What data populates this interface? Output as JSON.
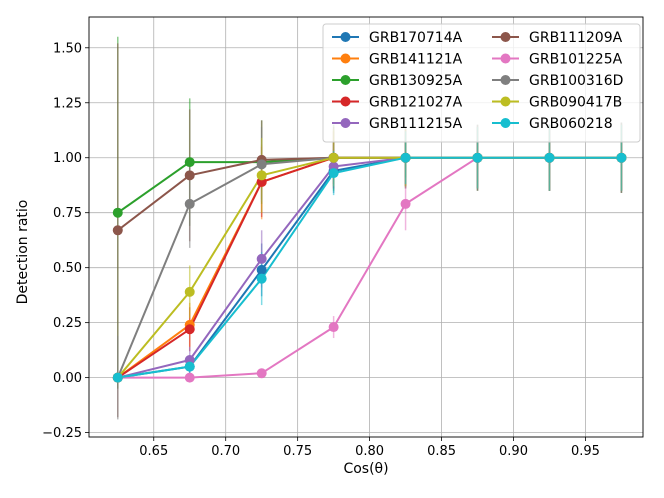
{
  "chart_data": {
    "type": "line",
    "title": "",
    "xlabel": "Cos(θ)",
    "ylabel": "Detection ratio",
    "xlim": [
      0.605,
      0.99
    ],
    "ylim": [
      -0.27,
      1.64
    ],
    "xticks": [
      0.65,
      0.7,
      0.75,
      0.8,
      0.85,
      0.9,
      0.95
    ],
    "xtick_labels": [
      "0.65",
      "0.70",
      "0.75",
      "0.80",
      "0.85",
      "0.90",
      "0.95"
    ],
    "yticks": [
      -0.25,
      0.0,
      0.25,
      0.5,
      0.75,
      1.0,
      1.25,
      1.5
    ],
    "ytick_labels": [
      "−0.25",
      "0.00",
      "0.25",
      "0.50",
      "0.75",
      "1.00",
      "1.25",
      "1.50"
    ],
    "grid": true,
    "legend_position": "top-right",
    "legend_columns": 2,
    "x": [
      0.625,
      0.675,
      0.725,
      0.775,
      0.825,
      0.875,
      0.925,
      0.975
    ],
    "series": [
      {
        "name": "GRB170714A",
        "color": "#1f77b4",
        "values": [
          0.0,
          0.05,
          0.49,
          0.94,
          1.0,
          1.0,
          1.0,
          1.0
        ],
        "err": [
          0.0,
          0.05,
          0.12,
          0.1,
          0.12,
          0.14,
          0.15,
          0.15
        ]
      },
      {
        "name": "GRB141121A",
        "color": "#ff7f0e",
        "values": [
          0.0,
          0.24,
          0.89,
          1.0,
          1.0,
          1.0,
          1.0,
          1.0
        ],
        "err": [
          0.0,
          0.1,
          0.17,
          0.12,
          0.13,
          0.14,
          0.15,
          0.15
        ]
      },
      {
        "name": "GRB130925A",
        "color": "#2ca02c",
        "values": [
          0.75,
          0.98,
          0.98,
          1.0,
          1.0,
          1.0,
          1.0,
          1.0
        ],
        "err": [
          0.8,
          0.29,
          0.19,
          0.15,
          0.14,
          0.15,
          0.15,
          0.16
        ]
      },
      {
        "name": "GRB121027A",
        "color": "#d62728",
        "values": [
          0.0,
          0.22,
          0.89,
          1.0,
          1.0,
          1.0,
          1.0,
          1.0
        ],
        "err": [
          0.0,
          0.1,
          0.16,
          0.12,
          0.13,
          0.14,
          0.15,
          0.15
        ]
      },
      {
        "name": "GRB111215A",
        "color": "#9467bd",
        "values": [
          0.0,
          0.08,
          0.54,
          0.96,
          1.0,
          1.0,
          1.0,
          1.0
        ],
        "err": [
          0.0,
          0.06,
          0.13,
          0.1,
          0.12,
          0.14,
          0.15,
          0.15
        ]
      },
      {
        "name": "GRB111209A",
        "color": "#8c564b",
        "values": [
          0.67,
          0.92,
          0.99,
          1.0,
          1.0,
          1.0,
          1.0,
          1.0
        ],
        "err": [
          0.85,
          0.3,
          0.18,
          0.14,
          0.14,
          0.15,
          0.15,
          0.16
        ]
      },
      {
        "name": "GRB101225A",
        "color": "#e377c2",
        "values": [
          0.0,
          0.0,
          0.02,
          0.23,
          0.79,
          1.0,
          1.0,
          1.0
        ],
        "err": [
          0.0,
          0.0,
          0.02,
          0.05,
          0.12,
          0.14,
          0.15,
          0.15
        ]
      },
      {
        "name": "GRB100316D",
        "color": "#7f7f7f",
        "values": [
          0.0,
          0.79,
          0.97,
          1.0,
          1.0,
          1.0,
          1.0,
          1.0
        ],
        "err": [
          0.19,
          0.2,
          0.17,
          0.13,
          0.13,
          0.15,
          0.15,
          0.16
        ]
      },
      {
        "name": "GRB090417B",
        "color": "#bcbd22",
        "values": [
          0.0,
          0.39,
          0.92,
          1.0,
          1.0,
          1.0,
          1.0,
          1.0
        ],
        "err": [
          0.0,
          0.12,
          0.17,
          0.13,
          0.13,
          0.14,
          0.15,
          0.15
        ]
      },
      {
        "name": "GRB060218",
        "color": "#17becf",
        "values": [
          0.0,
          0.05,
          0.45,
          0.93,
          1.0,
          1.0,
          1.0,
          1.0
        ],
        "err": [
          0.0,
          0.05,
          0.12,
          0.1,
          0.12,
          0.14,
          0.15,
          0.15
        ]
      }
    ]
  }
}
